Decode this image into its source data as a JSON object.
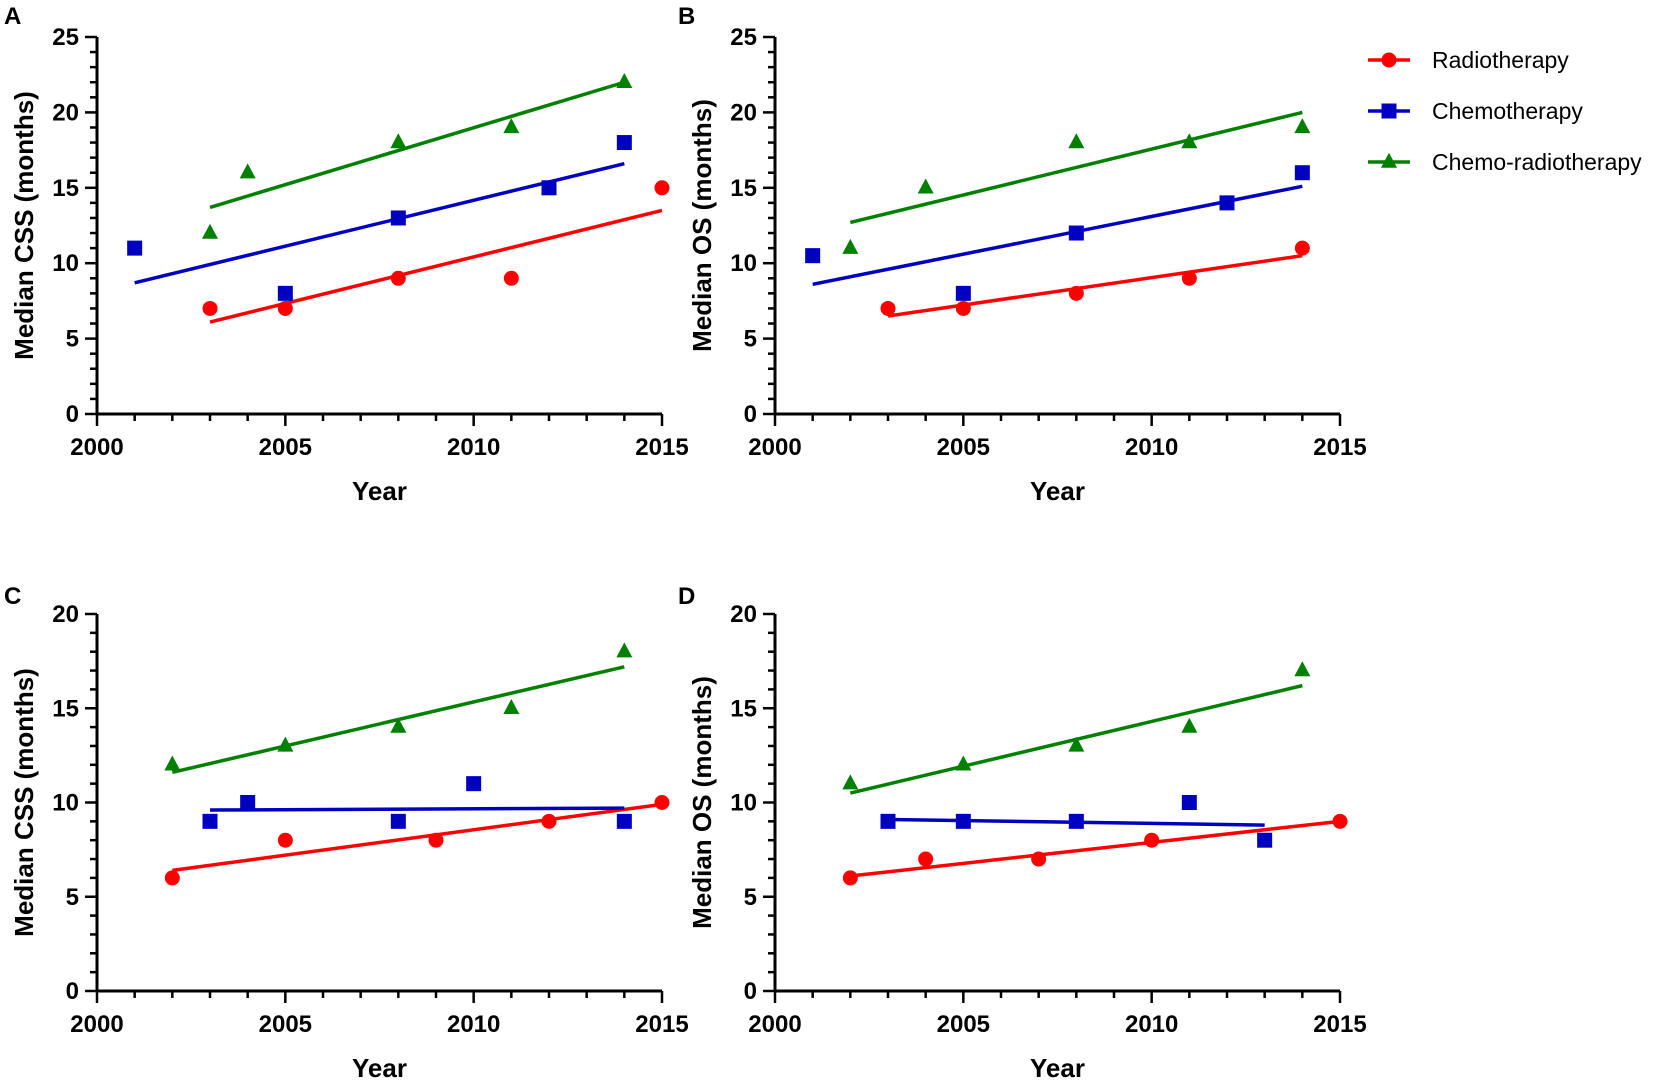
{
  "legend": {
    "items": [
      {
        "key": "radiotherapy",
        "label": "Radiotherapy",
        "color": "#ff0000",
        "marker": "circle"
      },
      {
        "key": "chemotherapy",
        "label": "Chemotherapy",
        "color": "#0000c0",
        "marker": "square"
      },
      {
        "key": "chemoradiotherapy",
        "label": "Chemo-radiotherapy",
        "color": "#008000",
        "marker": "triangle"
      }
    ]
  },
  "chart_data": [
    {
      "panel": "A",
      "type": "scatter",
      "xlabel": "Year",
      "ylabel": "Median CSS (months)",
      "xlim": [
        2000,
        2015
      ],
      "ylim": [
        0,
        25
      ],
      "xticks": [
        2000,
        2005,
        2010,
        2015
      ],
      "yticks": [
        0,
        5,
        10,
        15,
        20,
        25
      ],
      "series": [
        {
          "key": "radiotherapy",
          "name": "Radiotherapy",
          "x": [
            2003,
            2005,
            2008,
            2011,
            2015
          ],
          "y": [
            7,
            7,
            9,
            9,
            15
          ],
          "fit": {
            "x": [
              2003,
              2015
            ],
            "y": [
              6.1,
              13.5
            ]
          }
        },
        {
          "key": "chemotherapy",
          "name": "Chemotherapy",
          "x": [
            2001,
            2005,
            2008,
            2012,
            2014
          ],
          "y": [
            11,
            8,
            13,
            15,
            18
          ],
          "fit": {
            "x": [
              2001,
              2014
            ],
            "y": [
              8.7,
              16.6
            ]
          }
        },
        {
          "key": "chemoradiotherapy",
          "name": "Chemo-radiotherapy",
          "x": [
            2003,
            2004,
            2008,
            2011,
            2014
          ],
          "y": [
            12,
            16,
            18,
            19,
            22
          ],
          "fit": {
            "x": [
              2003,
              2014
            ],
            "y": [
              13.7,
              22.0
            ]
          }
        }
      ]
    },
    {
      "panel": "B",
      "type": "scatter",
      "xlabel": "Year",
      "ylabel": "Median OS (months)",
      "xlim": [
        2000,
        2015
      ],
      "ylim": [
        0,
        25
      ],
      "xticks": [
        2000,
        2005,
        2010,
        2015
      ],
      "yticks": [
        0,
        5,
        10,
        15,
        20,
        25
      ],
      "series": [
        {
          "key": "radiotherapy",
          "name": "Radiotherapy",
          "x": [
            2003,
            2005,
            2008,
            2011,
            2014
          ],
          "y": [
            7,
            7,
            8,
            9,
            11
          ],
          "fit": {
            "x": [
              2003,
              2014
            ],
            "y": [
              6.5,
              10.5
            ]
          }
        },
        {
          "key": "chemotherapy",
          "name": "Chemotherapy",
          "x": [
            2001,
            2005,
            2008,
            2012,
            2014
          ],
          "y": [
            10.5,
            8,
            12,
            14,
            16
          ],
          "fit": {
            "x": [
              2001,
              2014
            ],
            "y": [
              8.6,
              15.1
            ]
          }
        },
        {
          "key": "chemoradiotherapy",
          "name": "Chemo-radiotherapy",
          "x": [
            2002,
            2004,
            2008,
            2011,
            2014
          ],
          "y": [
            11,
            15,
            18,
            18,
            19
          ],
          "fit": {
            "x": [
              2002,
              2014
            ],
            "y": [
              12.7,
              20.0
            ]
          }
        }
      ]
    },
    {
      "panel": "C",
      "type": "scatter",
      "xlabel": "Year",
      "ylabel": "Median CSS (months)",
      "xlim": [
        2000,
        2015
      ],
      "ylim": [
        0,
        20
      ],
      "xticks": [
        2000,
        2005,
        2010,
        2015
      ],
      "yticks": [
        0,
        5,
        10,
        15,
        20
      ],
      "series": [
        {
          "key": "radiotherapy",
          "name": "Radiotherapy",
          "x": [
            2002,
            2005,
            2009,
            2012,
            2015
          ],
          "y": [
            6,
            8,
            8,
            9,
            10
          ],
          "fit": {
            "x": [
              2002,
              2015
            ],
            "y": [
              6.4,
              9.9
            ]
          }
        },
        {
          "key": "chemotherapy",
          "name": "Chemotherapy",
          "x": [
            2003,
            2004,
            2008,
            2010,
            2014
          ],
          "y": [
            9,
            10,
            9,
            11,
            9
          ],
          "fit": {
            "x": [
              2003,
              2014
            ],
            "y": [
              9.6,
              9.7
            ]
          }
        },
        {
          "key": "chemoradiotherapy",
          "name": "Chemo-radiotherapy",
          "x": [
            2002,
            2005,
            2008,
            2011,
            2014
          ],
          "y": [
            12,
            13,
            14,
            15,
            18
          ],
          "fit": {
            "x": [
              2002,
              2014
            ],
            "y": [
              11.6,
              17.2
            ]
          }
        }
      ]
    },
    {
      "panel": "D",
      "type": "scatter",
      "xlabel": "Year",
      "ylabel": "Median OS (months)",
      "xlim": [
        2000,
        2015
      ],
      "ylim": [
        0,
        20
      ],
      "xticks": [
        2000,
        2005,
        2010,
        2015
      ],
      "yticks": [
        0,
        5,
        10,
        15,
        20
      ],
      "series": [
        {
          "key": "radiotherapy",
          "name": "Radiotherapy",
          "x": [
            2002,
            2004,
            2007,
            2010,
            2015
          ],
          "y": [
            6,
            7,
            7,
            8,
            9
          ],
          "fit": {
            "x": [
              2002,
              2015
            ],
            "y": [
              6.1,
              9.0
            ]
          }
        },
        {
          "key": "chemotherapy",
          "name": "Chemotherapy",
          "x": [
            2003,
            2005,
            2008,
            2011,
            2013
          ],
          "y": [
            9,
            9,
            9,
            10,
            8
          ],
          "fit": {
            "x": [
              2003,
              2013
            ],
            "y": [
              9.1,
              8.8
            ]
          }
        },
        {
          "key": "chemoradiotherapy",
          "name": "Chemo-radiotherapy",
          "x": [
            2002,
            2005,
            2008,
            2011,
            2014
          ],
          "y": [
            11,
            12,
            13,
            14,
            17
          ],
          "fit": {
            "x": [
              2002,
              2014
            ],
            "y": [
              10.5,
              16.2
            ]
          }
        }
      ]
    }
  ]
}
